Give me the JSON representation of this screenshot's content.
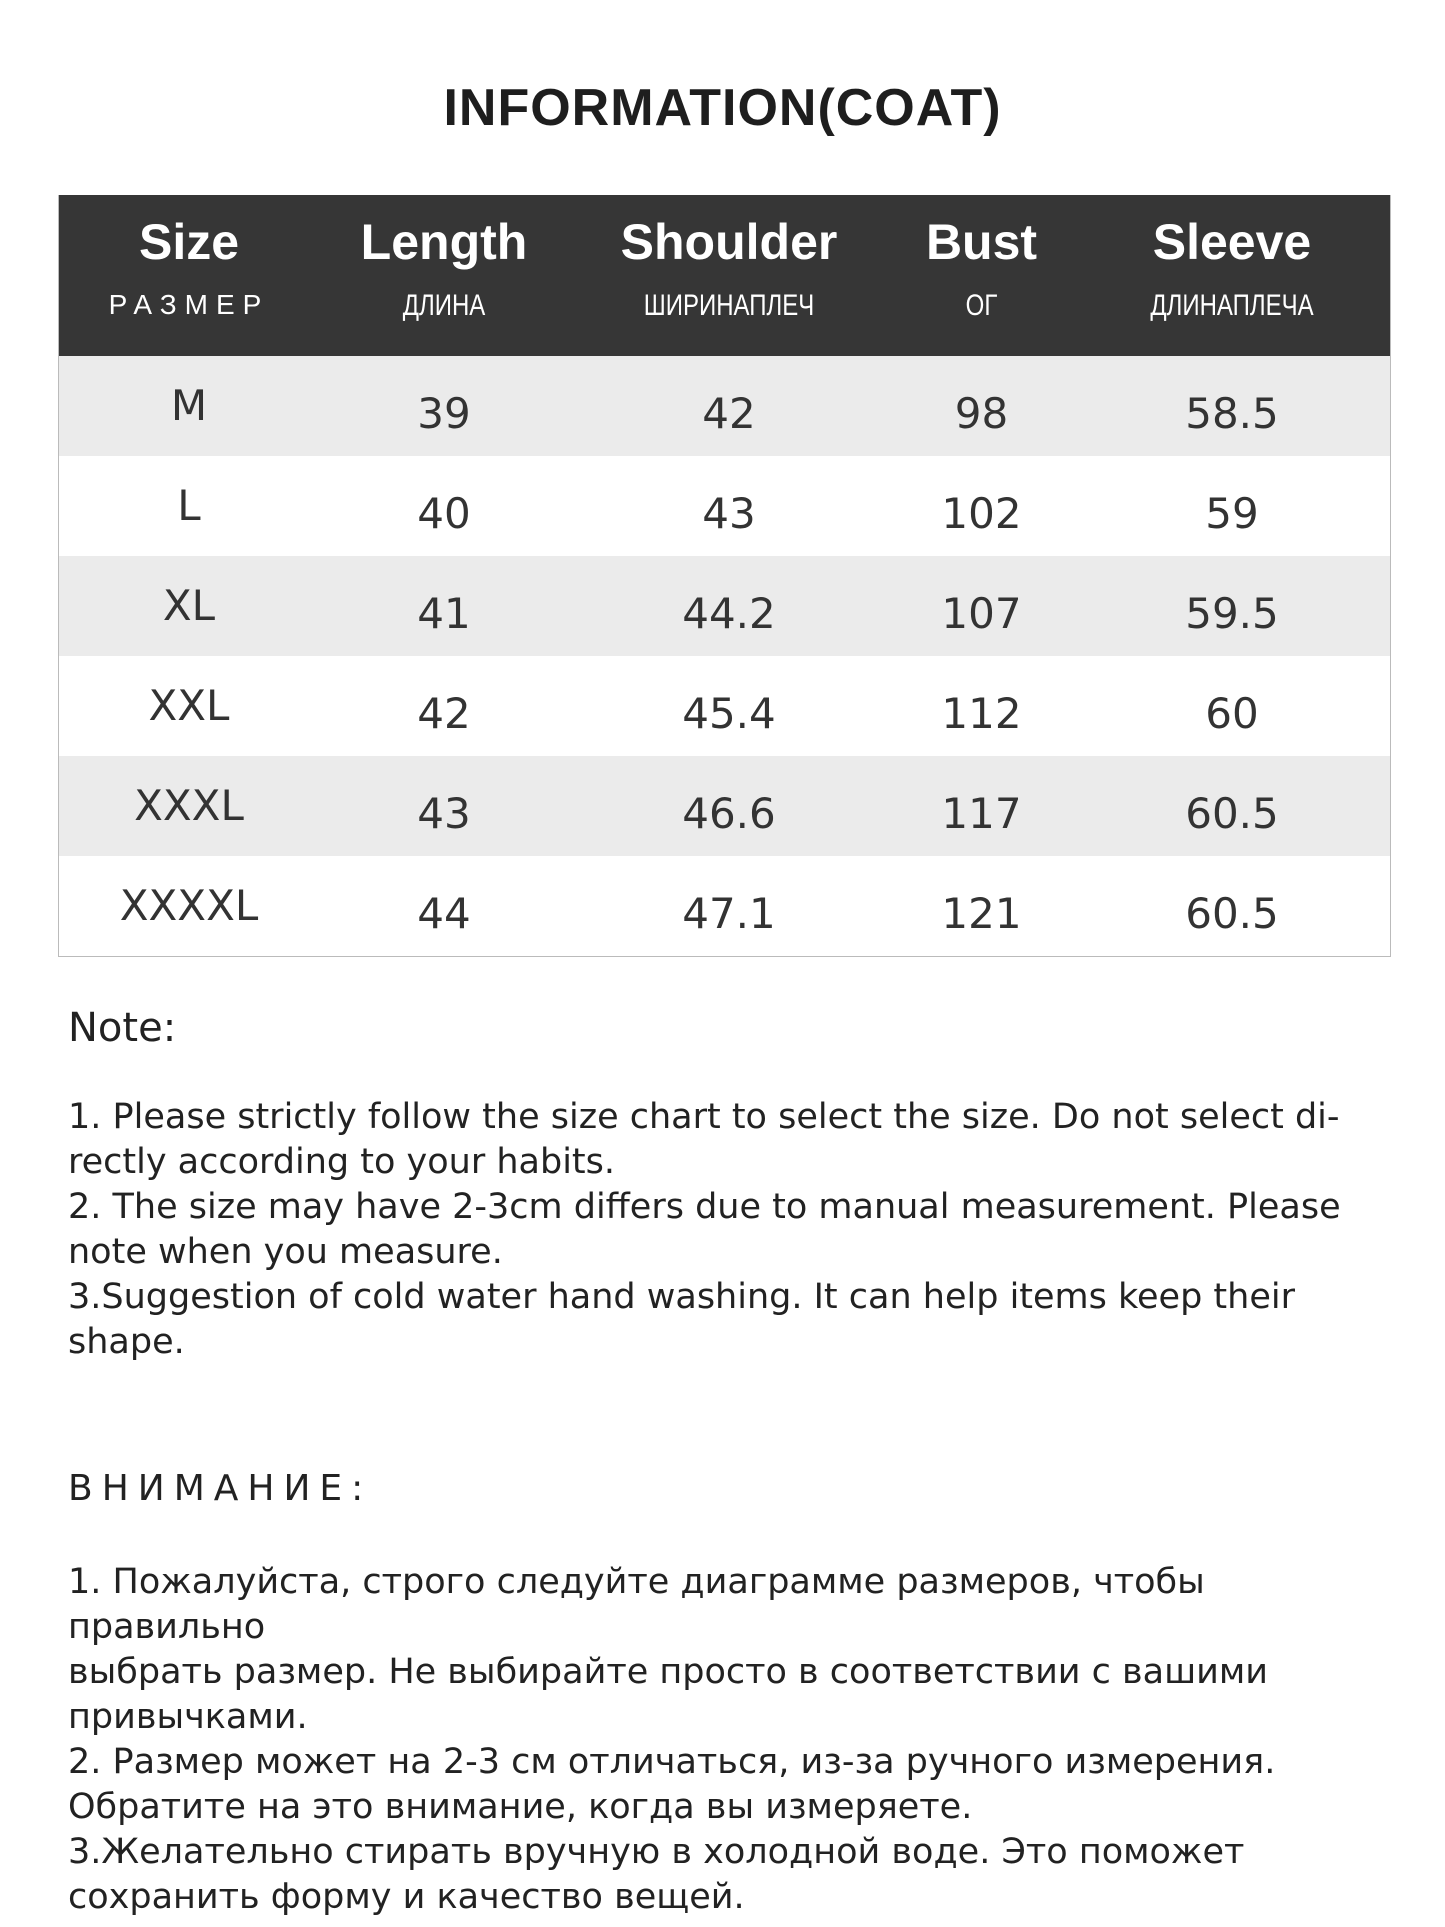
{
  "title": "INFORMATION(COAT)",
  "headers": [
    {
      "en": "Size",
      "ru": "РАЗМЕР"
    },
    {
      "en": "Length",
      "ru": "ДЛИНА"
    },
    {
      "en": "Shoulder",
      "ru": "ШИРИНАПЛЕЧ"
    },
    {
      "en": "Bust",
      "ru": "ОГ"
    },
    {
      "en": "Sleeve",
      "ru": "ДЛИНАПЛЕЧА"
    }
  ],
  "rows": [
    [
      "M",
      "39",
      "42",
      "98",
      "58.5"
    ],
    [
      "L",
      "40",
      "43",
      "102",
      "59"
    ],
    [
      "XL",
      "41",
      "44.2",
      "107",
      "59.5"
    ],
    [
      "XXL",
      "42",
      "45.4",
      "112",
      "60"
    ],
    [
      "XXXL",
      "43",
      "46.6",
      "117",
      "60.5"
    ],
    [
      "XXXXL",
      "44",
      "47.1",
      "121",
      "60.5"
    ]
  ],
  "note_heading": "Note:",
  "notes": "1. Please strictly follow the size chart  to select the size. Do not select di-\nrectly according to your habits.\n2. The size may have 2-3cm differs due to manual measurement. Please\nnote when you measure.\n3.Suggestion of cold water hand washing. It can help items keep their\nshape.",
  "ru_heading": "ВНИМАНИЕ:",
  "ru_notes": "1. Пожалуйста, строго следуйте диаграмме размеров, чтобы правильно\nвыбрать размер. Не выбирайте просто в соответствии с вашими\nпривычками.\n2. Размер может на 2-3 см отличаться, из-за ручного измерения.\nОбратите на это внимание, когда вы измеряете.\n3.Желательно стирать вручную в холодной воде. Это поможет\nсохранить форму и качество вещей."
}
